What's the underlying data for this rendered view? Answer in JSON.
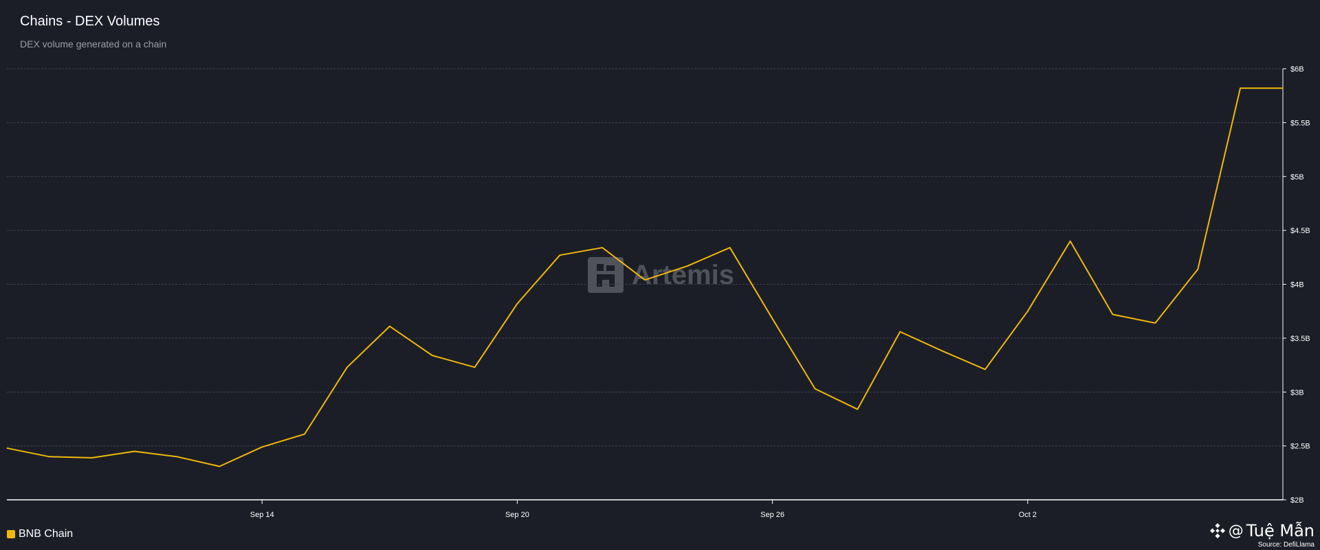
{
  "header": {
    "title": "Chains - DEX Volumes",
    "subtitle": "DEX volume generated on a chain"
  },
  "watermark": {
    "text": "Artemis",
    "icon": "artemis-logo"
  },
  "credit": {
    "icon": "binance-diamond-icon",
    "at": "@",
    "name": "Tuệ Mẫn",
    "source": "Source: DefiLlama"
  },
  "colors": {
    "background": "#1c1e27",
    "series": "#f0b90b",
    "grid": "#3e404c",
    "axis": "#ffffff"
  },
  "chart_data": {
    "type": "line",
    "title": "Chains - DEX Volumes",
    "subtitle": "DEX volume generated on a chain",
    "xlabel": "",
    "ylabel": "",
    "x": [
      "2023-09-08",
      "2023-09-09",
      "2023-09-10",
      "2023-09-11",
      "2023-09-12",
      "2023-09-13",
      "2023-09-14",
      "2023-09-15",
      "2023-09-16",
      "2023-09-17",
      "2023-09-18",
      "2023-09-19",
      "2023-09-20",
      "2023-09-21",
      "2023-09-22",
      "2023-09-23",
      "2023-09-24",
      "2023-09-25",
      "2023-09-26",
      "2023-09-27",
      "2023-09-28",
      "2023-09-29",
      "2023-09-30",
      "2023-10-01",
      "2023-10-02",
      "2023-10-03",
      "2023-10-04",
      "2023-10-05",
      "2023-10-06",
      "2023-10-07",
      "2023-10-08"
    ],
    "x_ticks": [
      {
        "date": "2023-09-14",
        "label": "Sep 14"
      },
      {
        "date": "2023-09-20",
        "label": "Sep 20"
      },
      {
        "date": "2023-09-26",
        "label": "Sep 26"
      },
      {
        "date": "2023-10-02",
        "label": "Oct 2"
      }
    ],
    "ylim": [
      2.0,
      6.0
    ],
    "y_unit": "B",
    "y_ticks": [
      {
        "value": 2.0,
        "label": "$2B"
      },
      {
        "value": 2.5,
        "label": "$2.5B"
      },
      {
        "value": 3.0,
        "label": "$3B"
      },
      {
        "value": 3.5,
        "label": "$3.5B"
      },
      {
        "value": 4.0,
        "label": "$4B"
      },
      {
        "value": 4.5,
        "label": "$4.5B"
      },
      {
        "value": 5.0,
        "label": "$5B"
      },
      {
        "value": 5.5,
        "label": "$5.5B"
      },
      {
        "value": 6.0,
        "label": "$6B"
      }
    ],
    "y_axis_side": "right",
    "grid": true,
    "legend": "bottom-left",
    "series": [
      {
        "name": "BNB Chain",
        "color": "#f0b90b",
        "values": [
          2.48,
          2.4,
          2.39,
          2.45,
          2.4,
          2.31,
          2.49,
          2.61,
          3.23,
          3.61,
          3.34,
          3.23,
          3.82,
          4.27,
          4.34,
          4.04,
          4.17,
          4.34,
          3.68,
          3.03,
          2.84,
          3.56,
          3.38,
          3.21,
          3.75,
          4.4,
          3.72,
          3.64,
          4.14,
          5.82,
          5.82
        ]
      }
    ]
  }
}
